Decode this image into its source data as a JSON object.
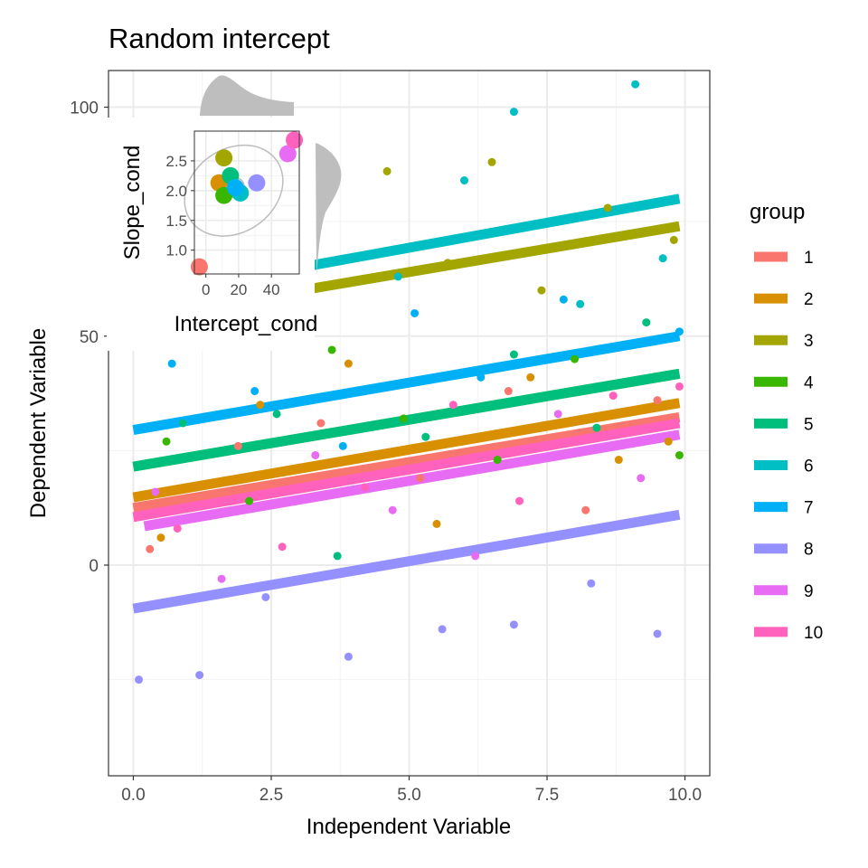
{
  "chart_data": [
    {
      "type": "scatter",
      "title": "Random intercept",
      "xlabel": "Independent Variable",
      "ylabel": "Dependent Variable",
      "xlim": [
        -0.45,
        10.45
      ],
      "ylim": [
        -46,
        108
      ],
      "x_ticks": [
        0,
        2.5,
        5,
        7.5,
        10
      ],
      "x_tick_labels": [
        "0.0",
        "2.5",
        "5.0",
        "7.5",
        "10.0"
      ],
      "y_ticks": [
        0,
        50,
        100
      ],
      "y_tick_labels": [
        "0",
        "50",
        "100"
      ],
      "grid": true,
      "legend": {
        "title": "group",
        "position": "right"
      },
      "series": [
        {
          "name": "1",
          "color": "#F8766D",
          "line": [
            [
              0,
              12.5
            ],
            [
              9.9,
              32.3
            ]
          ],
          "points": [
            [
              0.3,
              3.5
            ],
            [
              1.9,
              26
            ],
            [
              3.4,
              31
            ],
            [
              5.2,
              19
            ],
            [
              6.8,
              38
            ],
            [
              8.2,
              12
            ],
            [
              9.5,
              36
            ]
          ]
        },
        {
          "name": "2",
          "color": "#D89000",
          "line": [
            [
              0,
              14.8
            ],
            [
              9.9,
              35.4
            ]
          ],
          "points": [
            [
              0.5,
              6
            ],
            [
              2.3,
              35
            ],
            [
              3.9,
              44
            ],
            [
              5.5,
              9
            ],
            [
              7.2,
              41
            ],
            [
              8.8,
              23
            ],
            [
              9.7,
              27
            ]
          ]
        },
        {
          "name": "3",
          "color": "#A3A500",
          "line": [
            [
              2.8,
              59.5
            ],
            [
              9.9,
              74
            ]
          ],
          "points": [
            [
              3.0,
              51
            ],
            [
              4.6,
              86
            ],
            [
              5.7,
              66
            ],
            [
              6.5,
              88
            ],
            [
              7.4,
              60
            ],
            [
              8.6,
              78
            ],
            [
              9.8,
              71
            ]
          ]
        },
        {
          "name": "4",
          "color": "#39B600",
          "line": [
            [
              0,
              21.5
            ],
            [
              9.9,
              41.8
            ]
          ],
          "points": [
            [
              0.6,
              27
            ],
            [
              2.1,
              14
            ],
            [
              3.6,
              47
            ],
            [
              4.9,
              32
            ],
            [
              6.6,
              23
            ],
            [
              8.0,
              45
            ],
            [
              9.9,
              24
            ]
          ]
        },
        {
          "name": "5",
          "color": "#00BF7D",
          "line": [
            [
              0,
              21.5
            ],
            [
              9.9,
              41.8
            ]
          ],
          "points": [
            [
              0.9,
              31
            ],
            [
              2.6,
              33
            ],
            [
              3.7,
              2
            ],
            [
              5.3,
              28
            ],
            [
              6.9,
              46
            ],
            [
              8.4,
              30
            ],
            [
              9.3,
              53
            ]
          ]
        },
        {
          "name": "6",
          "color": "#00BFC4",
          "line": [
            [
              2.8,
              64.5
            ],
            [
              9.9,
              80
            ]
          ],
          "points": [
            [
              3.2,
              73
            ],
            [
              4.8,
              63
            ],
            [
              6.0,
              84
            ],
            [
              6.9,
              99
            ],
            [
              8.1,
              57
            ],
            [
              9.1,
              105
            ],
            [
              9.6,
              67
            ]
          ]
        },
        {
          "name": "7",
          "color": "#00B0F6",
          "line": [
            [
              0,
              29.5
            ],
            [
              9.9,
              50
            ]
          ],
          "points": [
            [
              0.7,
              44
            ],
            [
              2.2,
              38
            ],
            [
              3.8,
              26
            ],
            [
              5.1,
              55
            ],
            [
              6.3,
              41
            ],
            [
              7.8,
              58
            ],
            [
              9.9,
              51
            ]
          ]
        },
        {
          "name": "8",
          "color": "#9590FF",
          "line": [
            [
              0,
              -9.5
            ],
            [
              9.9,
              11
            ]
          ],
          "points": [
            [
              0.1,
              -25
            ],
            [
              1.2,
              -24
            ],
            [
              2.4,
              -7
            ],
            [
              3.9,
              -20
            ],
            [
              5.6,
              -14
            ],
            [
              6.9,
              -13
            ],
            [
              8.3,
              -4
            ],
            [
              9.5,
              -15
            ]
          ]
        },
        {
          "name": "9",
          "color": "#E76BF3",
          "line": [
            [
              0.2,
              8.5
            ],
            [
              9.9,
              28.5
            ]
          ],
          "points": [
            [
              0.4,
              16
            ],
            [
              1.6,
              -3
            ],
            [
              3.3,
              24
            ],
            [
              4.7,
              12
            ],
            [
              6.2,
              2
            ],
            [
              7.7,
              33
            ],
            [
              9.2,
              19
            ]
          ]
        },
        {
          "name": "10",
          "color": "#FF62BC",
          "line": [
            [
              0,
              10.5
            ],
            [
              9.9,
              31
            ]
          ],
          "points": [
            [
              0.8,
              8
            ],
            [
              2.7,
              4
            ],
            [
              4.2,
              17
            ],
            [
              5.8,
              35
            ],
            [
              7.0,
              14
            ],
            [
              8.7,
              37
            ],
            [
              9.9,
              39
            ]
          ]
        }
      ]
    },
    {
      "type": "scatter",
      "xlabel": "Intercept_cond",
      "ylabel": "Slope_cond",
      "xlim": [
        -7,
        57
      ],
      "ylim": [
        0.6,
        3.0
      ],
      "x_ticks": [
        0,
        20,
        40
      ],
      "x_tick_labels": [
        "0",
        "20",
        "40"
      ],
      "y_ticks": [
        1.0,
        1.5,
        2.0,
        2.5
      ],
      "y_tick_labels": [
        "1.0",
        "1.5",
        "2.0",
        "2.5"
      ],
      "grid": true,
      "points": [
        {
          "group": "1",
          "color": "#F8766D",
          "x": -4,
          "y": 0.72
        },
        {
          "group": "2",
          "color": "#D89000",
          "x": 8,
          "y": 2.13
        },
        {
          "group": "3",
          "color": "#A3A500",
          "x": 11,
          "y": 2.55
        },
        {
          "group": "4",
          "color": "#39B600",
          "x": 11,
          "y": 1.92
        },
        {
          "group": "5",
          "color": "#00BF7D",
          "x": 15,
          "y": 2.25
        },
        {
          "group": "6",
          "color": "#00BFC4",
          "x": 21,
          "y": 1.96
        },
        {
          "group": "7",
          "color": "#00B0F6",
          "x": 18,
          "y": 2.05
        },
        {
          "group": "8",
          "color": "#9590FF",
          "x": 31,
          "y": 2.13
        },
        {
          "group": "9",
          "color": "#E76BF3",
          "x": 50,
          "y": 2.62
        },
        {
          "group": "10",
          "color": "#FF62BC",
          "x": 54,
          "y": 2.85
        }
      ]
    }
  ]
}
